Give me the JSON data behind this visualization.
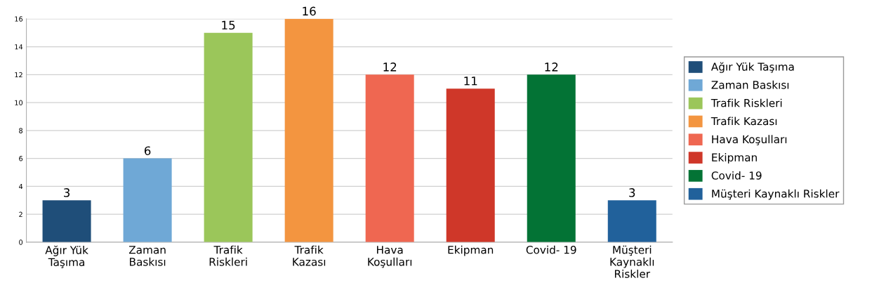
{
  "chart_data": {
    "type": "bar",
    "categories": [
      "Ağır Yük Taşıma",
      "Zaman Baskısı",
      "Trafik Riskleri",
      "Trafik Kazası",
      "Hava Koşulları",
      "Ekipman",
      "Covid- 19",
      "Müşteri Kaynaklı Riskler"
    ],
    "series": [
      {
        "name": "Ağır Yük Taşıma",
        "color": "#1f4e79",
        "values": [
          3,
          null,
          null,
          null,
          null,
          null,
          null,
          null
        ]
      },
      {
        "name": "Zaman Baskısı",
        "color": "#6fa8d6",
        "values": [
          null,
          6,
          null,
          null,
          null,
          null,
          null,
          null
        ]
      },
      {
        "name": "Trafik Riskleri",
        "color": "#9bc65a",
        "values": [
          null,
          null,
          15,
          null,
          null,
          null,
          null,
          null
        ]
      },
      {
        "name": "Trafik Kazası",
        "color": "#f39540",
        "values": [
          null,
          null,
          null,
          16,
          null,
          null,
          null,
          null
        ]
      },
      {
        "name": "Hava Koşulları",
        "color": "#ef6751",
        "values": [
          null,
          null,
          null,
          null,
          12,
          null,
          null,
          null
        ]
      },
      {
        "name": "Ekipman",
        "color": "#cf3729",
        "values": [
          null,
          null,
          null,
          null,
          null,
          11,
          null,
          null
        ]
      },
      {
        "name": "Covid- 19",
        "color": "#037335",
        "values": [
          null,
          null,
          null,
          null,
          null,
          null,
          12,
          null
        ]
      },
      {
        "name": "Müşteri Kaynaklı Riskler",
        "color": "#21619b",
        "values": [
          null,
          null,
          null,
          null,
          null,
          null,
          null,
          3
        ]
      }
    ],
    "ylim": [
      0,
      16
    ],
    "yticks": [
      0,
      2,
      4,
      6,
      8,
      10,
      12,
      14,
      16
    ],
    "grid": "y",
    "legend": "right",
    "data_labels": true
  }
}
